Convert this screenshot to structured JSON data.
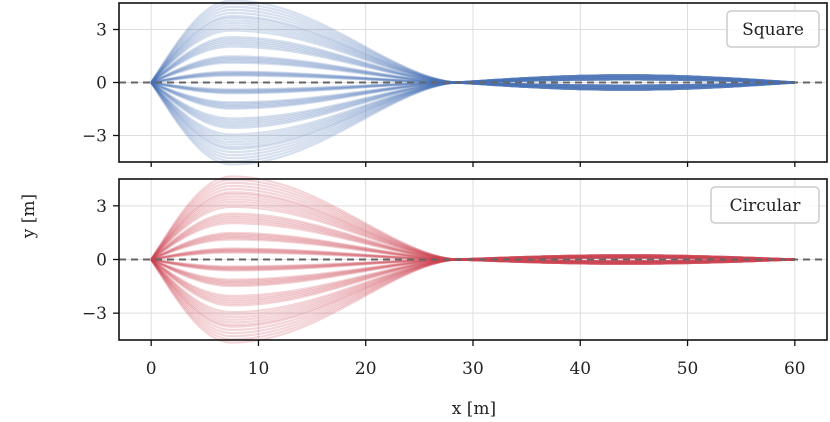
{
  "chart_data": {
    "type": "line",
    "xlabel": "x [m]",
    "ylabel": "y [m]",
    "xlim": [
      -3,
      63
    ],
    "x_ticks": [
      0,
      10,
      20,
      30,
      40,
      50,
      60
    ],
    "grid": true,
    "reference_line": {
      "y": 0,
      "style": "dashed",
      "color": "#666666"
    },
    "panels": [
      {
        "legend": "Square",
        "legend_position": "top-right",
        "color": "#4a72b8",
        "ylim": [
          -4.5,
          4.5
        ],
        "y_ticks": [
          -3,
          0,
          3
        ],
        "y_tick_labels": [
          "−3",
          "0",
          "3"
        ],
        "series": {
          "merge_x": 28.5,
          "end_x": 60,
          "peak_x": 7.5,
          "peak_offsets": [
            -4.2,
            -3.3,
            -2.3,
            -1.3,
            -0.5,
            0.5,
            1.3,
            2.3,
            3.3,
            4.2
          ],
          "tail_peak": 0.35,
          "tail_peak_x": 38
        }
      },
      {
        "legend": "Circular",
        "legend_position": "top-right",
        "color": "#cc4450",
        "ylim": [
          -4.5,
          4.5
        ],
        "y_ticks": [
          -3,
          0,
          3
        ],
        "y_tick_labels": [
          "−3",
          "0",
          "3"
        ],
        "series": {
          "merge_x": 28.5,
          "end_x": 60,
          "peak_x": 7.5,
          "peak_offsets": [
            -4.2,
            -3.3,
            -2.3,
            -1.3,
            -0.5,
            0.5,
            1.3,
            2.3,
            3.3,
            4.2
          ],
          "tail_peak": 0.2,
          "tail_peak_x": 38
        }
      }
    ]
  }
}
